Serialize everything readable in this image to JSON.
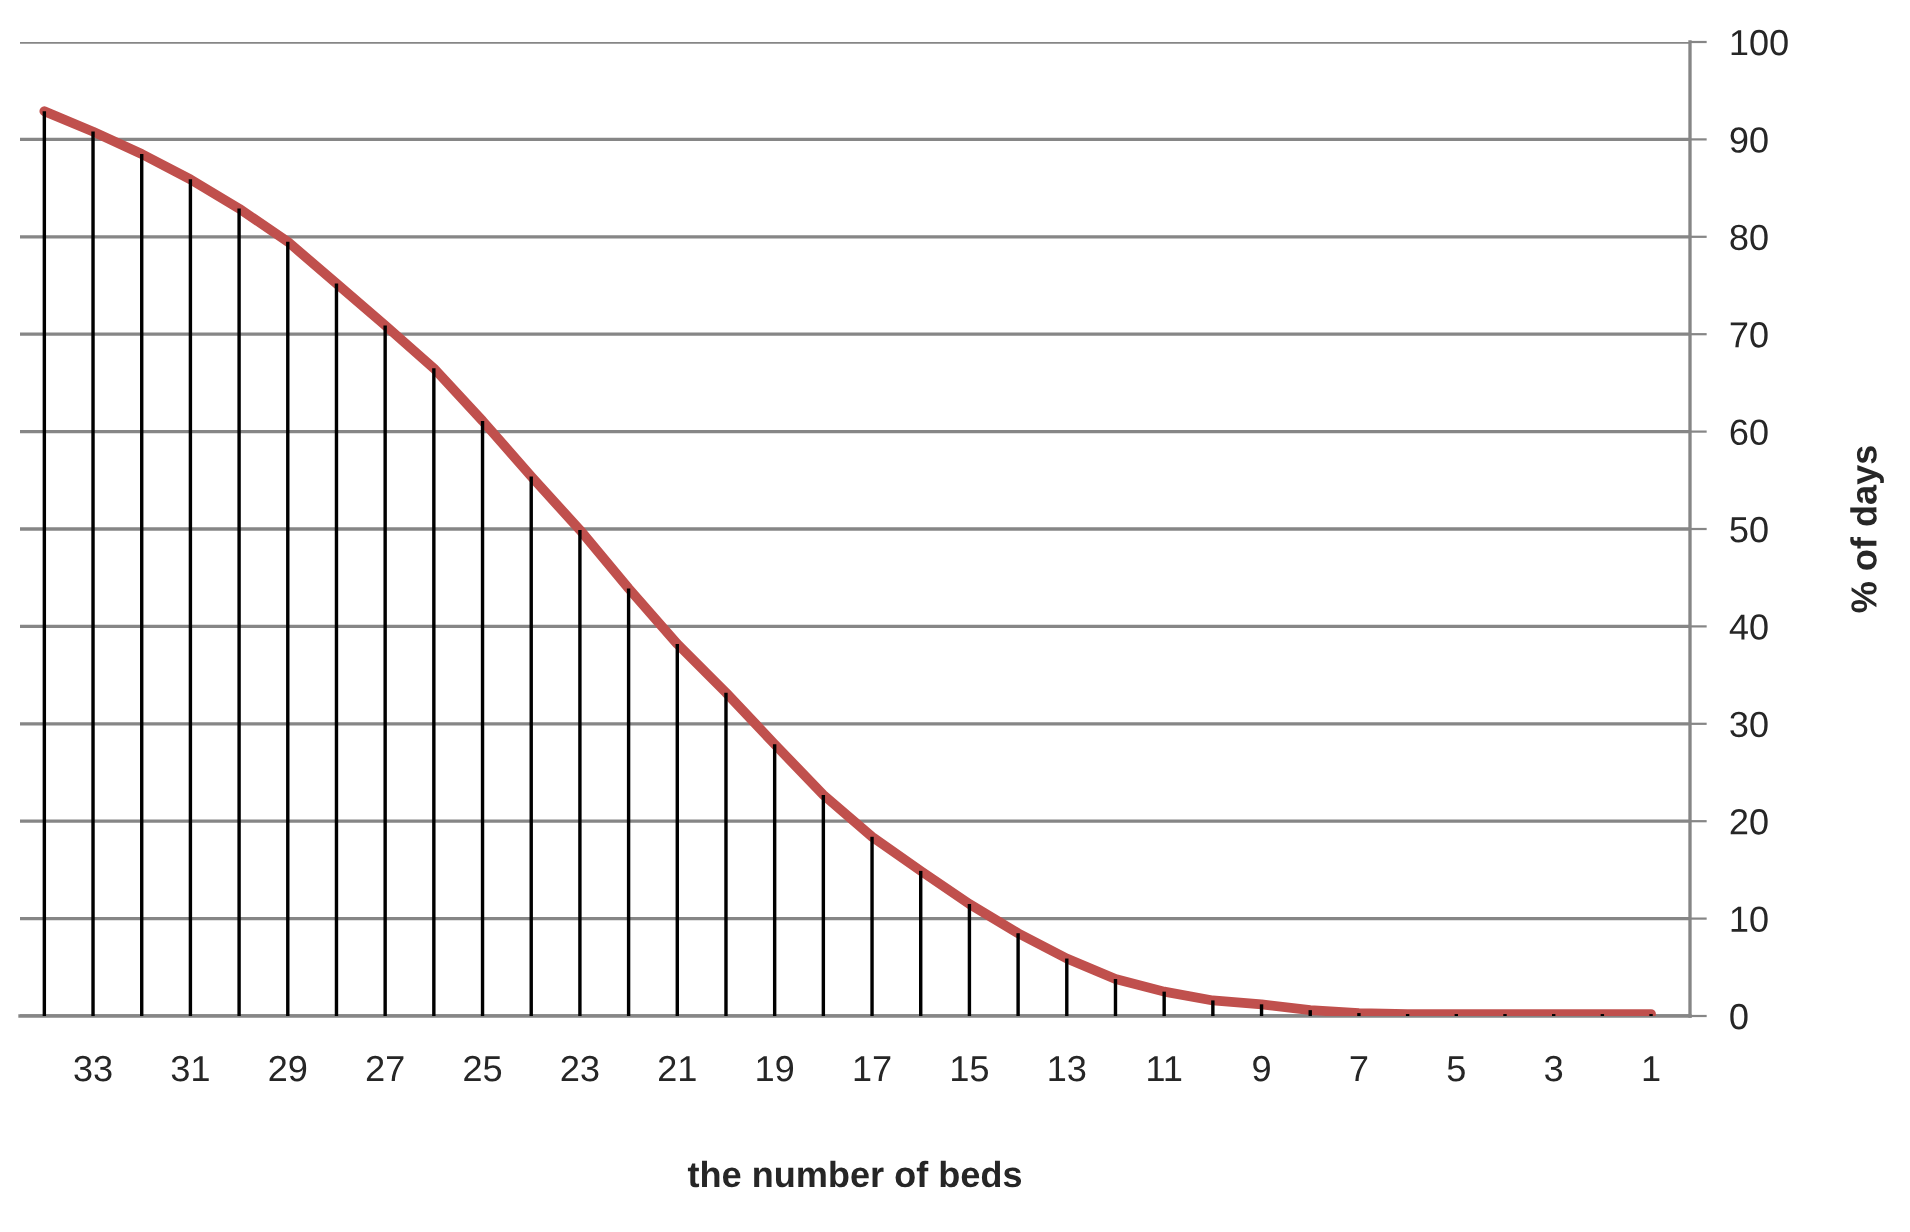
{
  "chart_data": {
    "type": "line",
    "xlabel": "the number of beds",
    "ylabel": "% of days",
    "categories": [
      null,
      "33",
      null,
      "31",
      null,
      "29",
      null,
      "27",
      null,
      "25",
      null,
      "23",
      null,
      "21",
      null,
      "19",
      null,
      "17",
      null,
      "15",
      null,
      "13",
      null,
      "11",
      null,
      "9",
      null,
      "7",
      null,
      "5",
      null,
      "3",
      null,
      "1"
    ],
    "series": [
      {
        "type": "bar",
        "color": "#000000",
        "values": [
          92.9,
          90.8,
          88.5,
          85.9,
          82.9,
          79.5,
          75.2,
          70.9,
          66.5,
          61.1,
          55.4,
          49.9,
          43.9,
          38.2,
          33.2,
          27.9,
          22.7,
          18.4,
          14.9,
          11.5,
          8.5,
          5.9,
          3.8,
          2.5,
          1.6,
          1.2,
          0.6,
          0.3,
          0.2,
          0.2,
          0.2,
          0.2,
          0.2,
          0.2
        ]
      },
      {
        "color": "#c0504d",
        "values": [
          92.9,
          90.8,
          88.5,
          85.9,
          82.9,
          79.5,
          75.2,
          70.9,
          66.5,
          61.1,
          55.4,
          49.9,
          43.9,
          38.2,
          33.2,
          27.9,
          22.7,
          18.4,
          14.9,
          11.5,
          8.5,
          5.9,
          3.8,
          2.5,
          1.6,
          1.2,
          0.6,
          0.3,
          0.2,
          0.2,
          0.2,
          0.2,
          0.2,
          0.2
        ]
      }
    ],
    "ylim": [
      0,
      100
    ],
    "yticks": [
      0,
      10,
      20,
      30,
      40,
      50,
      60,
      70,
      80,
      90,
      100
    ],
    "grid": "y",
    "marker": "none",
    "line_style": "solid"
  }
}
